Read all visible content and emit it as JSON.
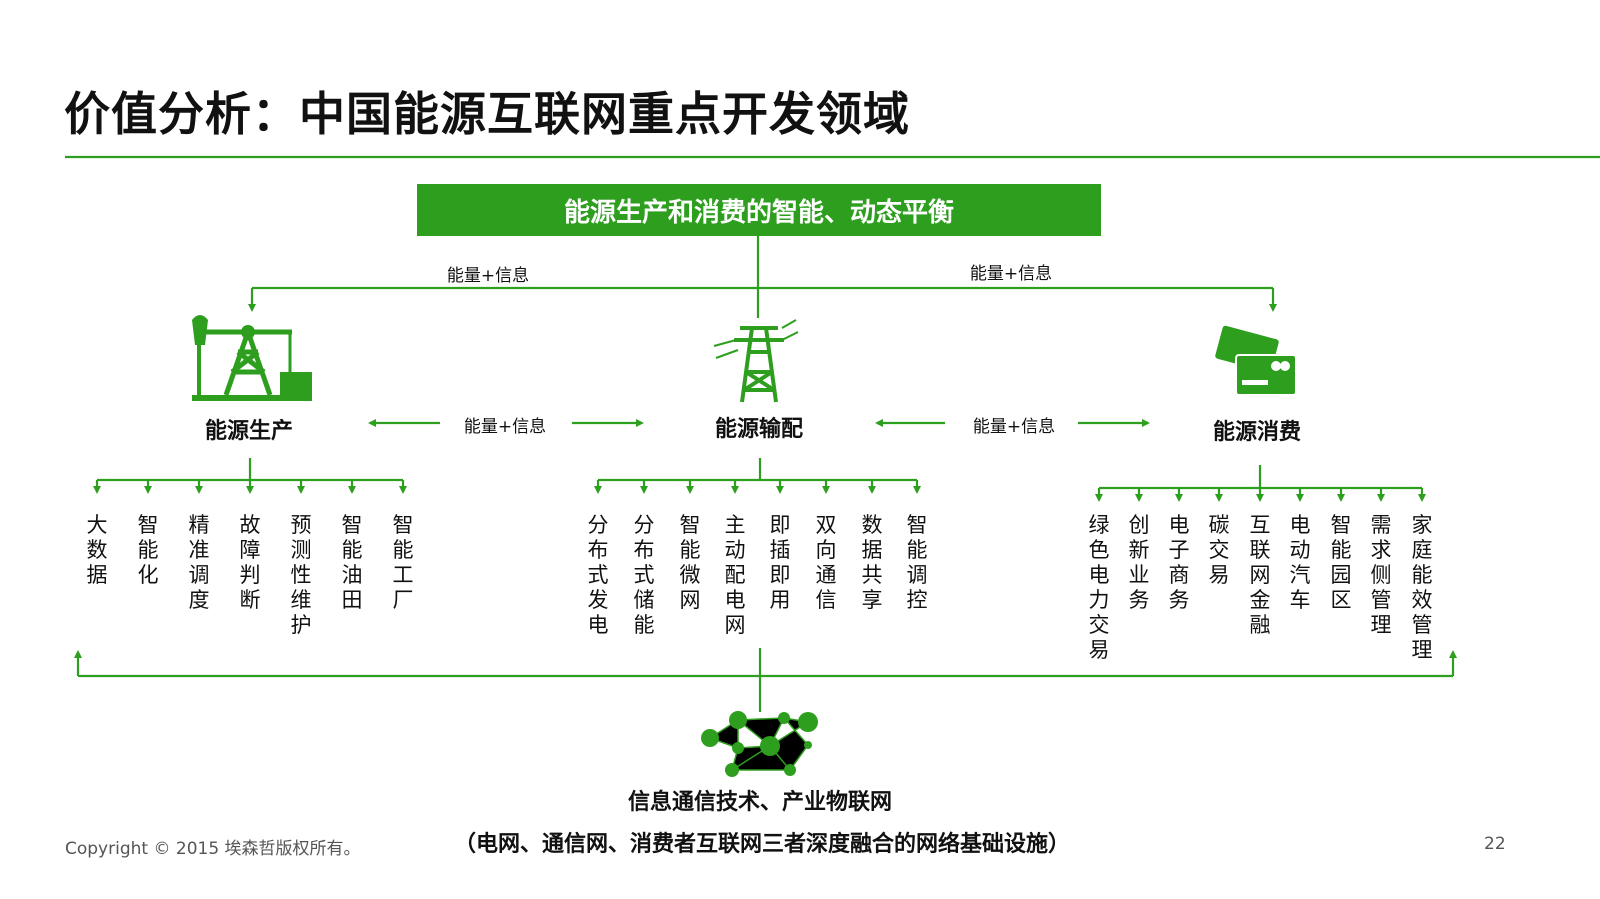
{
  "title": "价值分析：中国能源互联网重点开发领域",
  "banner": "能源生产和消费的智能、动态平衡",
  "flow_label": "能量+信息",
  "nodes": {
    "production": "能源生产",
    "distribution": "能源输配",
    "consumption": "能源消费",
    "ict": "信息通信技术、产业物联网"
  },
  "production_items": [
    "大数据",
    "智能化",
    "精准调度",
    "故障判断",
    "预测性维护",
    "智能油田",
    "智能工厂"
  ],
  "distribution_items": [
    "分布式发电",
    "分布式储能",
    "智能微网",
    "主动配电网",
    "即插即用",
    "双向通信",
    "数据共享",
    "智能调控"
  ],
  "consumption_items": [
    "绿色电力交易",
    "创新业务",
    "电子商务",
    "碳交易",
    "互联网金融",
    "电动汽车",
    "智能园区",
    "需求侧管理",
    "家庭能效管理"
  ],
  "footer": {
    "copyright": "Copyright © 2015 埃森哲版权所有。",
    "subtitle": "（电网、通信网、消费者互联网三者深度融合的网络基础设施）",
    "page": "22"
  },
  "colors": {
    "accent": "#2e9e1f",
    "text": "#111111"
  },
  "icons": [
    "oil-pump-icon",
    "power-tower-icon",
    "credit-card-icon",
    "network-icon"
  ]
}
